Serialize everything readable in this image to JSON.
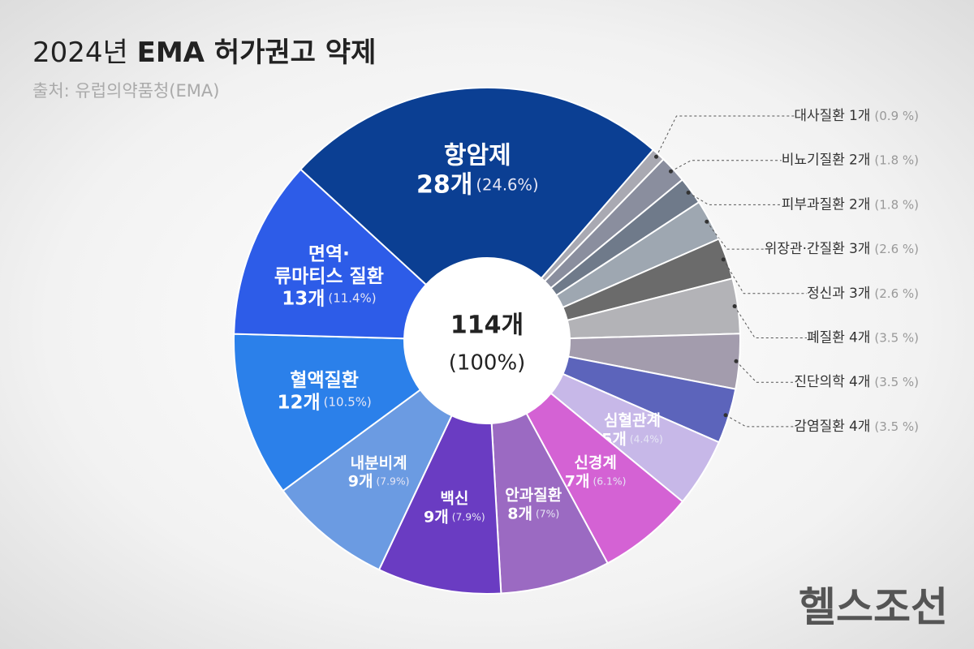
{
  "chart_data": {
    "type": "donut",
    "title_year": "2024년",
    "title": "EMA 허가권고 약제",
    "source": "출처: 유럽의약품청(EMA)",
    "center_label": "114개",
    "center_sub": "(100%)",
    "watermark": "헬스조선",
    "categories": [
      "항암제",
      "대사질환",
      "비뇨기질환",
      "피부과질환",
      "위장관·간질환",
      "정신과",
      "폐질환",
      "진단의학",
      "감염질환",
      "심혈관계",
      "신경계",
      "안과질환",
      "백신",
      "내분비계",
      "혈액질환",
      "면역·\n류마티스 질환"
    ],
    "values": [
      28,
      1,
      2,
      2,
      3,
      3,
      4,
      4,
      4,
      5,
      7,
      8,
      9,
      9,
      12,
      13
    ],
    "value_labels": [
      "28개",
      "1개",
      "2개",
      "2개",
      "3개",
      "3개",
      "4개",
      "4개",
      "4개",
      "5개",
      "7개",
      "8개",
      "9개",
      "9개",
      "12개",
      "13개"
    ],
    "shares": [
      24.6,
      0.9,
      1.8,
      1.8,
      2.6,
      2.6,
      3.5,
      3.5,
      3.5,
      4.4,
      6.1,
      7,
      7.9,
      7.9,
      10.5,
      11.4
    ],
    "share_labels": [
      "(24.6%)",
      "(0.9 %)",
      "(1.8 %)",
      "(1.8 %)",
      "(2.6 %)",
      "(2.6 %)",
      "(3.5 %)",
      "(3.5 %)",
      "(3.5 %)",
      "(4.4%)",
      "(6.1%)",
      "(7%)",
      "(7.9%)",
      "(7.9%)",
      "(10.5%)",
      "(11.4%)"
    ],
    "colors": [
      "#0b3f93",
      "#a9a9b2",
      "#8a8e9e",
      "#6f7a8a",
      "#9ea7b1",
      "#6b6b6b",
      "#b3b3b7",
      "#a39cad",
      "#5c64bb",
      "#c7b8e8",
      "#d462d4",
      "#9b6ac2",
      "#6a3cc2",
      "#6b9be2",
      "#2b80ea",
      "#2d5ce8"
    ]
  }
}
